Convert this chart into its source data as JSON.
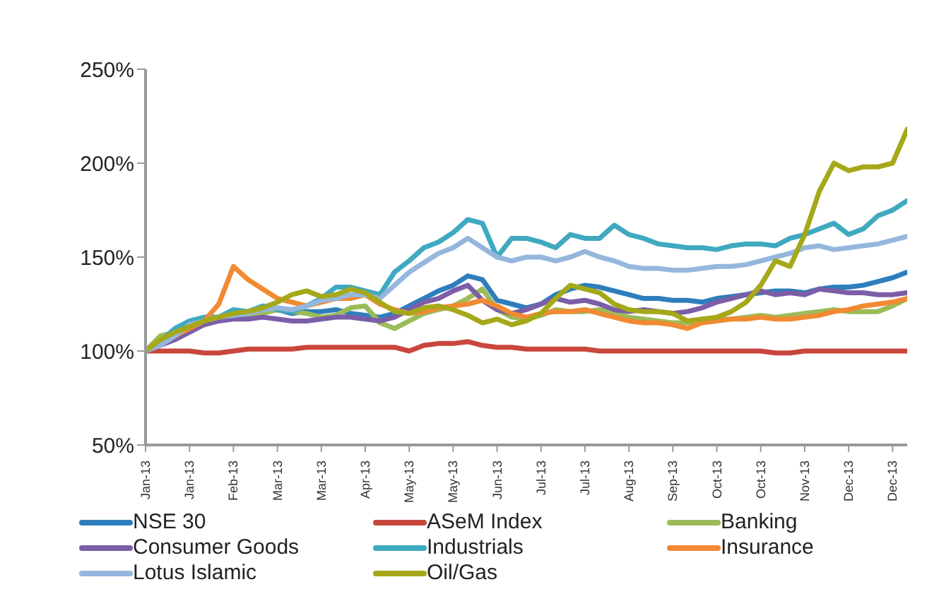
{
  "chart_data": {
    "type": "line",
    "categories": [
      "Jan-13",
      null,
      null,
      "Jan-13",
      null,
      null,
      "Feb-13",
      null,
      null,
      "Mar-13",
      null,
      null,
      "Mar-13",
      null,
      null,
      "Apr-13",
      null,
      null,
      "May-13",
      null,
      null,
      "May-13",
      null,
      null,
      "Jun-13",
      null,
      null,
      "Jul-13",
      null,
      null,
      "Jul-13",
      null,
      null,
      "Aug-13",
      null,
      null,
      "Sep-13",
      null,
      null,
      "Oct-13",
      null,
      null,
      "Oct-13",
      null,
      null,
      "Nov-13",
      null,
      null,
      "Dec-13",
      null,
      null,
      "Dec-13",
      null
    ],
    "series": [
      {
        "name": "NSE 30",
        "color": "#2e7ebd",
        "values": [
          100,
          104,
          110,
          114,
          116,
          117,
          119,
          120,
          121,
          122,
          120,
          121,
          121,
          122,
          120,
          119,
          118,
          120,
          124,
          128,
          132,
          135,
          140,
          138,
          127,
          125,
          123,
          125,
          130,
          133,
          135,
          134,
          132,
          130,
          128,
          128,
          127,
          127,
          126,
          128,
          129,
          130,
          131,
          132,
          132,
          131,
          133,
          134,
          134,
          135,
          137,
          139,
          142
        ]
      },
      {
        "name": "ASeM Index",
        "color": "#c9463d",
        "values": [
          100,
          100,
          100,
          100,
          99,
          99,
          100,
          101,
          101,
          101,
          101,
          102,
          102,
          102,
          102,
          102,
          102,
          102,
          100,
          103,
          104,
          104,
          105,
          103,
          102,
          102,
          101,
          101,
          101,
          101,
          101,
          100,
          100,
          100,
          100,
          100,
          100,
          100,
          100,
          100,
          100,
          100,
          100,
          99,
          99,
          100,
          100,
          100,
          100,
          100,
          100,
          100,
          100
        ]
      },
      {
        "name": "Banking",
        "color": "#9bbb59",
        "values": [
          100,
          108,
          110,
          112,
          115,
          117,
          118,
          119,
          120,
          122,
          121,
          120,
          118,
          119,
          123,
          124,
          115,
          112,
          116,
          120,
          122,
          124,
          128,
          133,
          122,
          118,
          117,
          119,
          122,
          121,
          121,
          122,
          120,
          118,
          117,
          116,
          115,
          115,
          116,
          117,
          117,
          118,
          119,
          118,
          119,
          120,
          121,
          122,
          121,
          121,
          121,
          124,
          128
        ]
      },
      {
        "name": "Consumer Goods",
        "color": "#7b5ea7",
        "values": [
          100,
          103,
          106,
          110,
          114,
          116,
          117,
          117,
          118,
          117,
          116,
          116,
          117,
          118,
          118,
          117,
          116,
          118,
          122,
          126,
          128,
          132,
          135,
          127,
          122,
          120,
          122,
          125,
          128,
          126,
          127,
          125,
          122,
          121,
          122,
          121,
          120,
          121,
          123,
          126,
          128,
          130,
          132,
          130,
          131,
          130,
          133,
          132,
          131,
          131,
          130,
          130,
          131
        ]
      },
      {
        "name": "Industrials",
        "color": "#3fa9c0",
        "values": [
          100,
          105,
          112,
          116,
          118,
          118,
          122,
          121,
          124,
          122,
          121,
          124,
          128,
          134,
          134,
          132,
          130,
          142,
          148,
          155,
          158,
          163,
          170,
          168,
          150,
          160,
          160,
          158,
          155,
          162,
          160,
          160,
          167,
          162,
          160,
          157,
          156,
          155,
          155,
          154,
          156,
          157,
          157,
          156,
          160,
          162,
          165,
          168,
          162,
          165,
          172,
          175,
          180
        ]
      },
      {
        "name": "Insurance",
        "color": "#f18a32",
        "values": [
          100,
          104,
          108,
          112,
          116,
          125,
          145,
          138,
          133,
          128,
          126,
          124,
          126,
          128,
          128,
          130,
          125,
          122,
          120,
          121,
          123,
          124,
          125,
          127,
          124,
          120,
          118,
          120,
          121,
          121,
          122,
          120,
          118,
          116,
          115,
          115,
          114,
          112,
          115,
          116,
          117,
          117,
          118,
          117,
          117,
          118,
          119,
          121,
          122,
          124,
          125,
          126,
          128
        ]
      },
      {
        "name": "Lotus Islamic",
        "color": "#95b7dd",
        "values": [
          100,
          103,
          108,
          114,
          116,
          118,
          119,
          120,
          122,
          123,
          122,
          124,
          127,
          128,
          130,
          130,
          128,
          135,
          142,
          147,
          152,
          155,
          160,
          155,
          150,
          148,
          150,
          150,
          148,
          150,
          153,
          150,
          148,
          145,
          144,
          144,
          143,
          143,
          144,
          145,
          145,
          146,
          148,
          150,
          152,
          155,
          156,
          154,
          155,
          156,
          157,
          159,
          161
        ]
      },
      {
        "name": "Oil/Gas",
        "color": "#a5a818",
        "values": [
          100,
          106,
          110,
          113,
          116,
          118,
          120,
          121,
          123,
          126,
          130,
          132,
          129,
          130,
          133,
          131,
          126,
          121,
          120,
          123,
          124,
          122,
          119,
          115,
          117,
          114,
          116,
          120,
          128,
          135,
          133,
          131,
          125,
          122,
          121,
          121,
          120,
          116,
          117,
          118,
          121,
          126,
          135,
          148,
          145,
          162,
          185,
          200,
          196,
          198,
          198,
          200,
          218
        ]
      }
    ],
    "ylim": [
      50,
      250
    ],
    "yticks": [
      {
        "value": 50,
        "label": "50%"
      },
      {
        "value": 100,
        "label": "100%"
      },
      {
        "value": 150,
        "label": "150%"
      },
      {
        "value": 200,
        "label": "200%"
      },
      {
        "value": 250,
        "label": "250%"
      }
    ],
    "grid": false,
    "legend": "bottom",
    "marker": "none",
    "line_style": "solid"
  }
}
